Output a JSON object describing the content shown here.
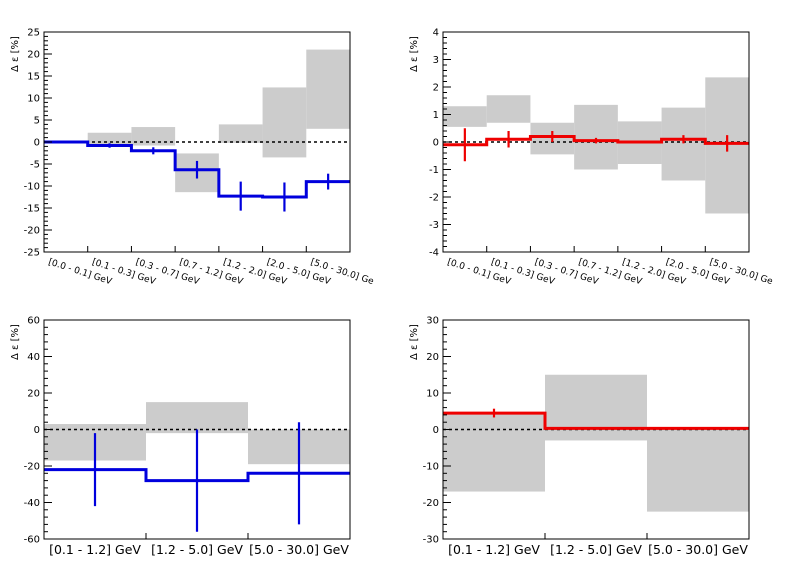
{
  "colors": {
    "syst_band": "#cccccc",
    "blue": "#0000dd",
    "red": "#ee0000",
    "axis": "#000000",
    "zero_line": "#000000"
  },
  "chart_data": [
    {
      "type": "step",
      "ylabel": "Δ ε [%]",
      "ylim": [
        -25,
        25
      ],
      "yticks": [
        -25,
        -20,
        -15,
        -10,
        -5,
        0,
        5,
        10,
        15,
        20,
        25
      ],
      "categories": [
        "[0.0 - 0.1] GeV",
        "[0.1 - 0.3] GeV",
        "[0.3 - 0.7] GeV",
        "[0.7 - 1.2] GeV",
        "[1.2 - 2.0] GeV",
        "[2.0 - 5.0] GeV",
        "[5.0 - 30.0] Ge"
      ],
      "category_style": "rotated",
      "line_color": "blue",
      "values": [
        0.0,
        -0.8,
        -2.0,
        -6.3,
        -12.3,
        -12.5,
        -9.0
      ],
      "stat_err": [
        0.3,
        0.5,
        0.8,
        2.0,
        3.3,
        3.3,
        1.8
      ],
      "syst_low": [
        0.0,
        -0.8,
        -0.8,
        -11.4,
        -0.2,
        -3.5,
        3.0
      ],
      "syst_high": [
        0.0,
        2.1,
        3.4,
        -2.6,
        4.0,
        12.4,
        21.0
      ],
      "grid": false,
      "zero_line": "dashed"
    },
    {
      "type": "step",
      "ylabel": "Δ ε [%]",
      "ylim": [
        -4,
        4
      ],
      "yticks": [
        -4,
        -3,
        -2,
        -1,
        0,
        1,
        2,
        3,
        4
      ],
      "categories": [
        "[0.0 - 0.1] GeV",
        "[0.1 - 0.3] GeV",
        "[0.3 - 0.7] GeV",
        "[0.7 - 1.2] GeV",
        "[1.2 - 2.0] GeV",
        "[2.0 - 5.0] GeV",
        "[5.0 - 30.0] Ge"
      ],
      "category_style": "rotated",
      "line_color": "red",
      "values": [
        -0.1,
        0.1,
        0.2,
        0.05,
        0.0,
        0.1,
        -0.05
      ],
      "stat_err": [
        0.6,
        0.3,
        0.2,
        0.1,
        0.05,
        0.15,
        0.3
      ],
      "syst_low": [
        0.55,
        0.7,
        -0.45,
        -1.0,
        -0.8,
        -1.4,
        -2.6
      ],
      "syst_high": [
        1.3,
        1.7,
        0.7,
        1.35,
        0.75,
        1.25,
        2.35
      ],
      "grid": false,
      "zero_line": "dashed"
    },
    {
      "type": "step",
      "ylabel": "Δ ε [%]",
      "ylim": [
        -60,
        60
      ],
      "yticks": [
        -60,
        -40,
        -20,
        0,
        20,
        40,
        60
      ],
      "categories": [
        "[0.1 - 1.2] GeV",
        "[1.2 - 5.0] GeV",
        "[5.0 - 30.0] GeV"
      ],
      "category_style": "flat",
      "line_color": "blue",
      "values": [
        -22,
        -28,
        -24
      ],
      "stat_err": [
        20,
        28,
        28
      ],
      "syst_low": [
        -17,
        -2,
        -19
      ],
      "syst_high": [
        3,
        15,
        0
      ],
      "grid": false,
      "zero_line": "dashed"
    },
    {
      "type": "step",
      "ylabel": "Δ ε [%]",
      "ylim": [
        -30,
        30
      ],
      "yticks": [
        -30,
        -20,
        -10,
        0,
        10,
        20,
        30
      ],
      "categories": [
        "[0.1 - 1.2] GeV",
        "[1.2 - 5.0] GeV",
        "[5.0 - 30.0] GeV"
      ],
      "category_style": "flat",
      "line_color": "red",
      "values": [
        4.5,
        0.3,
        0.3
      ],
      "stat_err": [
        1.2,
        0.3,
        0.3
      ],
      "syst_low": [
        -17,
        -3,
        -22.5
      ],
      "syst_high": [
        4.5,
        15,
        0.3
      ],
      "grid": false,
      "zero_line": "dashed"
    }
  ]
}
